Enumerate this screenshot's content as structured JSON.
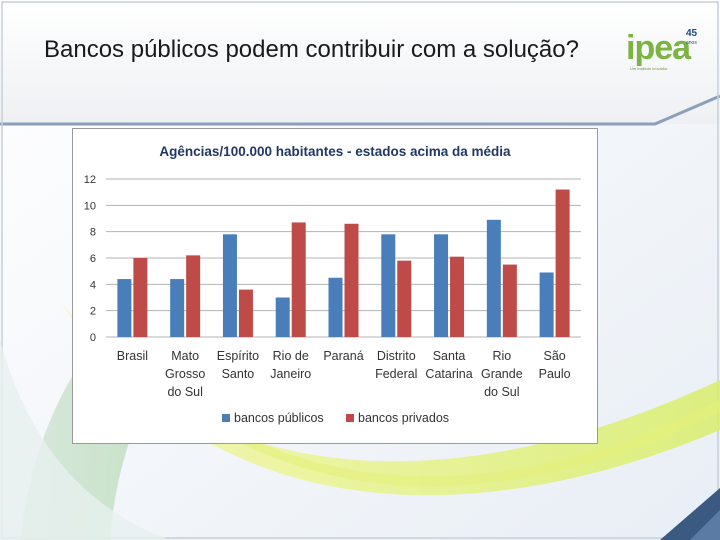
{
  "slide": {
    "title": "Bancos públicos podem contribuir com a solução?"
  },
  "logo": {
    "word": "ipea",
    "number": "45",
    "subtitle": "anos",
    "tagline": "Um instituto inovador"
  },
  "colors": {
    "bancos_publicos": "#4a7ebb",
    "bancos_privados": "#be4b48",
    "title_text": "#1f3864",
    "axis_text": "#333333",
    "gridline": "#b3b3b3",
    "logo_green": "#7cb342",
    "logo_blue": "#1e4a7a"
  },
  "chart_data": {
    "type": "bar",
    "title": "Agências/100.000 habitantes - estados acima da média",
    "categories": [
      [
        "Brasil"
      ],
      [
        "Mato",
        "Grosso",
        "do Sul"
      ],
      [
        "Espírito",
        "Santo"
      ],
      [
        "Rio de",
        "Janeiro"
      ],
      [
        "Paraná"
      ],
      [
        "Distrito",
        "Federal"
      ],
      [
        "Santa",
        "Catarina"
      ],
      [
        "Rio",
        "Grande",
        "do Sul"
      ],
      [
        "São",
        "Paulo"
      ]
    ],
    "series": [
      {
        "name": "bancos públicos",
        "values": [
          4.4,
          4.4,
          7.8,
          3.0,
          4.5,
          7.8,
          7.8,
          8.9,
          4.9
        ]
      },
      {
        "name": "bancos privados",
        "values": [
          6.0,
          6.2,
          3.6,
          8.7,
          8.6,
          5.8,
          6.1,
          5.5,
          11.2
        ]
      }
    ],
    "ylim": [
      0,
      12
    ],
    "yticks": [
      "0",
      "2",
      "4",
      "6",
      "8",
      "10",
      "12"
    ],
    "grid": true,
    "legend_position": "bottom"
  }
}
